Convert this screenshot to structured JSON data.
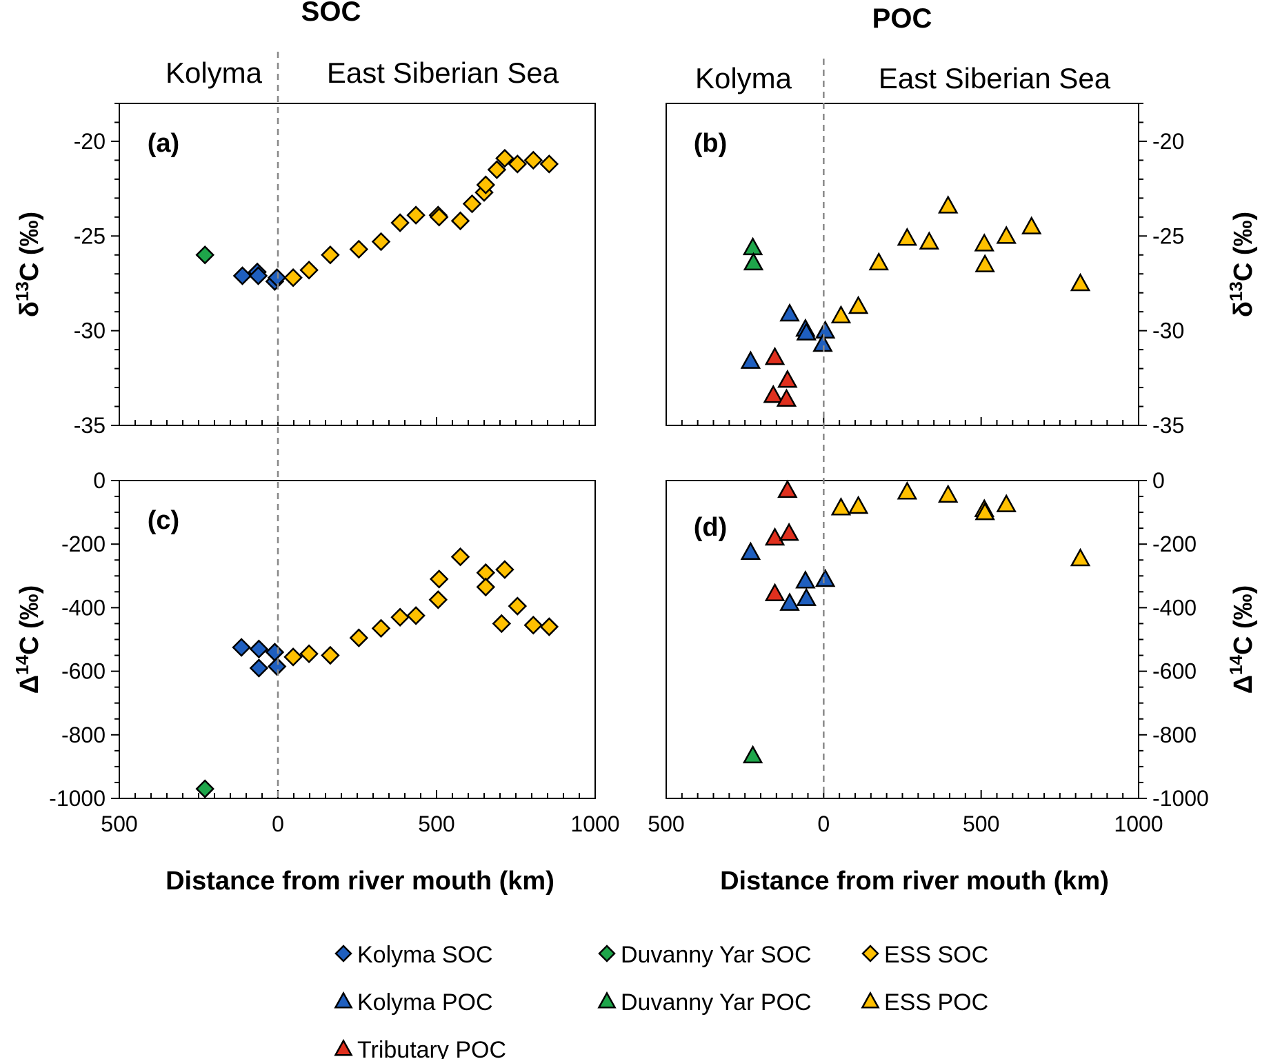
{
  "figure": {
    "column_titles": {
      "left": "SOC",
      "right": "POC"
    },
    "regions": {
      "left": "Kolyma",
      "right": "East Siberian Sea"
    },
    "xlabel": "Distance from river mouth (km)",
    "x_tick_labels": [
      "500",
      "0",
      "500",
      "1000"
    ]
  },
  "legend": {
    "items": [
      {
        "key": "kolyma_soc",
        "label": "Kolyma SOC",
        "marker": "diamond",
        "color": "#1f5fbf"
      },
      {
        "key": "duvanny_soc",
        "label": "Duvanny Yar SOC",
        "marker": "diamond",
        "color": "#1ea64a"
      },
      {
        "key": "ess_soc",
        "label": "ESS SOC",
        "marker": "diamond",
        "color": "#ffc000"
      },
      {
        "key": "kolyma_poc",
        "label": "Kolyma POC",
        "marker": "triangle",
        "color": "#1f5fbf"
      },
      {
        "key": "duvanny_poc",
        "label": "Duvanny Yar POC",
        "marker": "triangle",
        "color": "#1ea64a"
      },
      {
        "key": "ess_poc",
        "label": "ESS POC",
        "marker": "triangle",
        "color": "#ffc000"
      },
      {
        "key": "tributary_poc",
        "label": "Tributary POC",
        "marker": "triangle",
        "color": "#e0301e"
      }
    ]
  },
  "chart_data": [
    {
      "panel": "(a)",
      "type": "scatter",
      "title": "SOC",
      "xlabel": "Distance from river mouth (km)",
      "ylabel": "δ13C (‰)",
      "xlim": [
        -500,
        1000
      ],
      "ylim": [
        -35,
        -18
      ],
      "yticks": [
        -35,
        -30,
        -25,
        -20
      ],
      "ytick_labels": [
        "-35",
        "-30",
        "-25",
        "-20"
      ],
      "series": [
        {
          "name": "Duvanny Yar SOC",
          "marker": "diamond",
          "color": "#1ea64a",
          "points": [
            [
              -230,
              -26.0
            ]
          ]
        },
        {
          "name": "Kolyma SOC",
          "marker": "diamond",
          "color": "#1f5fbf",
          "points": [
            [
              -112,
              -27.1
            ],
            [
              -65,
              -26.9
            ],
            [
              -62,
              -27.1
            ],
            [
              -10,
              -27.4
            ],
            [
              -3,
              -27.2
            ]
          ]
        },
        {
          "name": "ESS SOC",
          "marker": "diamond",
          "color": "#ffc000",
          "points": [
            [
              48,
              -27.2
            ],
            [
              98,
              -26.8
            ],
            [
              165,
              -26.0
            ],
            [
              255,
              -25.7
            ],
            [
              325,
              -25.3
            ],
            [
              385,
              -24.3
            ],
            [
              435,
              -23.9
            ],
            [
              505,
              -23.9
            ],
            [
              508,
              -24.0
            ],
            [
              575,
              -24.2
            ],
            [
              612,
              -23.3
            ],
            [
              650,
              -22.7
            ],
            [
              655,
              -22.3
            ],
            [
              690,
              -21.5
            ],
            [
              715,
              -20.9
            ],
            [
              755,
              -21.2
            ],
            [
              805,
              -21.0
            ],
            [
              855,
              -21.2
            ]
          ]
        }
      ]
    },
    {
      "panel": "(b)",
      "type": "scatter",
      "title": "POC",
      "xlabel": "Distance from river mouth (km)",
      "ylabel": "δ13C (‰)",
      "xlim": [
        -500,
        1000
      ],
      "ylim": [
        -35,
        -18
      ],
      "yticks": [
        -35,
        -30,
        -25,
        -20
      ],
      "ytick_labels": [
        "-35",
        "-30",
        "-25",
        "-20"
      ],
      "series": [
        {
          "name": "Duvanny Yar POC",
          "marker": "triangle",
          "color": "#1ea64a",
          "points": [
            [
              -225,
              -25.6
            ],
            [
              -223,
              -26.4
            ]
          ]
        },
        {
          "name": "Kolyma POC",
          "marker": "triangle",
          "color": "#1f5fbf",
          "points": [
            [
              -232,
              -31.6
            ],
            [
              -108,
              -29.1
            ],
            [
              -58,
              -29.9
            ],
            [
              -55,
              -30.1
            ],
            [
              5,
              -30.0
            ],
            [
              -3,
              -30.7
            ]
          ]
        },
        {
          "name": "Tributary POC",
          "marker": "triangle",
          "color": "#e0301e",
          "points": [
            [
              -155,
              -31.4
            ],
            [
              -160,
              -33.4
            ],
            [
              -115,
              -32.6
            ],
            [
              -118,
              -33.6
            ]
          ]
        },
        {
          "name": "ESS POC",
          "marker": "triangle",
          "color": "#ffc000",
          "points": [
            [
              55,
              -29.2
            ],
            [
              110,
              -28.7
            ],
            [
              175,
              -26.4
            ],
            [
              265,
              -25.1
            ],
            [
              335,
              -25.3
            ],
            [
              395,
              -23.4
            ],
            [
              510,
              -25.4
            ],
            [
              512,
              -26.5
            ],
            [
              580,
              -25.0
            ],
            [
              660,
              -24.5
            ],
            [
              815,
              -27.5
            ]
          ]
        }
      ]
    },
    {
      "panel": "(c)",
      "type": "scatter",
      "title": "SOC",
      "xlabel": "Distance from river mouth (km)",
      "ylabel": "Δ14C (‰)",
      "xlim": [
        -500,
        1000
      ],
      "ylim": [
        -1000,
        0
      ],
      "yticks": [
        -1000,
        -800,
        -600,
        -400,
        -200,
        0
      ],
      "ytick_labels": [
        "-1000",
        "-800",
        "-600",
        "-400",
        "-200",
        "0"
      ],
      "series": [
        {
          "name": "Duvanny Yar SOC",
          "marker": "diamond",
          "color": "#1ea64a",
          "points": [
            [
              -230,
              -970
            ]
          ]
        },
        {
          "name": "Kolyma SOC",
          "marker": "diamond",
          "color": "#1f5fbf",
          "points": [
            [
              -115,
              -525
            ],
            [
              -60,
              -530
            ],
            [
              -60,
              -590
            ],
            [
              -10,
              -540
            ],
            [
              -3,
              -585
            ]
          ]
        },
        {
          "name": "ESS SOC",
          "marker": "diamond",
          "color": "#ffc000",
          "points": [
            [
              48,
              -555
            ],
            [
              98,
              -545
            ],
            [
              165,
              -550
            ],
            [
              255,
              -495
            ],
            [
              325,
              -465
            ],
            [
              385,
              -430
            ],
            [
              435,
              -425
            ],
            [
              505,
              -375
            ],
            [
              508,
              -310
            ],
            [
              575,
              -240
            ],
            [
              655,
              -290
            ],
            [
              655,
              -335
            ],
            [
              705,
              -450
            ],
            [
              715,
              -280
            ],
            [
              755,
              -395
            ],
            [
              805,
              -455
            ],
            [
              855,
              -460
            ]
          ]
        }
      ]
    },
    {
      "panel": "(d)",
      "type": "scatter",
      "title": "POC",
      "xlabel": "Distance from river mouth (km)",
      "ylabel": "Δ14C (‰)",
      "xlim": [
        -500,
        1000
      ],
      "ylim": [
        -1000,
        0
      ],
      "yticks": [
        -1000,
        -800,
        -600,
        -400,
        -200,
        0
      ],
      "ytick_labels": [
        "-1000",
        "-800",
        "-600",
        "-400",
        "-200",
        "0"
      ],
      "series": [
        {
          "name": "Duvanny Yar POC",
          "marker": "triangle",
          "color": "#1ea64a",
          "points": [
            [
              -225,
              -865
            ]
          ]
        },
        {
          "name": "Kolyma POC",
          "marker": "triangle",
          "color": "#1f5fbf",
          "points": [
            [
              -232,
              -225
            ],
            [
              -108,
              -385
            ],
            [
              -58,
              -315
            ],
            [
              -55,
              -370
            ],
            [
              5,
              -310
            ]
          ]
        },
        {
          "name": "Tributary POC",
          "marker": "triangle",
          "color": "#e0301e",
          "points": [
            [
              -115,
              -30
            ],
            [
              -155,
              -180
            ],
            [
              -110,
              -165
            ],
            [
              -155,
              -355
            ]
          ]
        },
        {
          "name": "ESS POC",
          "marker": "triangle",
          "color": "#ffc000",
          "points": [
            [
              55,
              -85
            ],
            [
              110,
              -80
            ],
            [
              265,
              -35
            ],
            [
              395,
              -45
            ],
            [
              510,
              -90
            ],
            [
              512,
              -100
            ],
            [
              580,
              -75
            ],
            [
              815,
              -245
            ]
          ]
        }
      ]
    }
  ]
}
